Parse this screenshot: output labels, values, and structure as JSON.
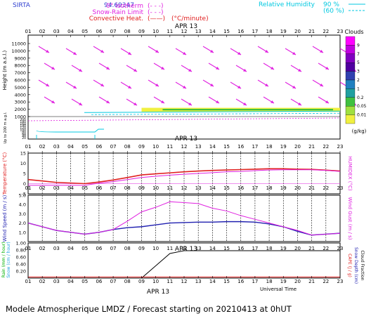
{
  "header": {
    "station": "SIRTA",
    "lonlat": "94.69347",
    "legend_left": [
      {
        "label": "0° isotherm",
        "style": "(- - -)",
        "color": "#e020e0"
      },
      {
        "label": "Snow-Rain Limit",
        "style": "(- - -)",
        "color": "#e020e0"
      },
      {
        "label": "Convective Heat.",
        "style": "(——)",
        "color": "#e020e0"
      }
    ],
    "conv_unit": "(°C/minute)",
    "rh_label": "Relative Humidity",
    "rh_items": [
      {
        "value": "90 %",
        "color": "#00d0e0"
      },
      {
        "value": "(60 %)",
        "color": "#00d0e0"
      }
    ]
  },
  "hours": [
    "01",
    "02",
    "03",
    "04",
    "05",
    "06",
    "07",
    "08",
    "09",
    "10",
    "11",
    "12",
    "13",
    "14",
    "15",
    "16",
    "17",
    "18",
    "19",
    "20",
    "21",
    "22",
    "23"
  ],
  "date_label": "APR 13",
  "colors": {
    "wind_arrow": "#e020e0",
    "temperature": "#e02020",
    "humidex": "#e020e0",
    "wind_speed": "#2020b0",
    "wind_gust": "#e020e0",
    "rain": "#00b000",
    "snow": "#20a0e0",
    "cape": "#e02020",
    "snow_depth": "#2020b0",
    "cloud_fraction": "#000000"
  },
  "clouds_bar": {
    "title": "Clouds",
    "ticks": [
      "9",
      "7",
      "5",
      "3",
      "2",
      "1",
      "0.2",
      "0.05",
      "0.01"
    ],
    "unit": "(g/kg)",
    "colors": [
      "#ff00ff",
      "#c000e0",
      "#8000c0",
      "#5000a0",
      "#3040b0",
      "#2080c0",
      "#20a0a0",
      "#40c040",
      "#a0e040",
      "#f0f040"
    ]
  },
  "panel_labels": {
    "height_axis": "Height  (m a.s.l.)",
    "low_axis": "Up to 200 m a.g.l.",
    "temp_axis": "Temperature (°C)",
    "humidex_axis": "HUMIDEX (°C)",
    "wind_axis": "Wind Speed (m / s)",
    "gust_axis": "Wind Gust (m / s)",
    "rain_axis": "Rain (mm / hour)",
    "snow_axis": "Snow (cm / hour)",
    "cape_axis": "CAPE (J / g)",
    "snowdepth_axis": "Snow Depth (cm)",
    "cloudfrac_axis": "Cloud Fraction",
    "universal_time": "Universal Time"
  },
  "footer": {
    "text": "Modele Atmospherique LMDZ / Forecast starting on 20210413 at 0hUT"
  },
  "chart_data": [
    {
      "type": "heatmap",
      "title": "",
      "ylabel": "Height (m a.s.l.)",
      "y_ticks": [
        "11000",
        "10000",
        "9000",
        "8000",
        "7000",
        "6000",
        "5000",
        "4000",
        "3000",
        "2000",
        "1000"
      ],
      "low_ticks": [
        "200",
        "180",
        "160",
        "140",
        "120",
        "100",
        "80",
        "60",
        "40",
        "20"
      ],
      "ylim": [
        1000,
        11000
      ],
      "clouds_layer": {
        "x_start": 9,
        "x_end": 23,
        "height_m": [
          1650,
          2200
        ]
      },
      "zero_isotherm_m": 1000
    },
    {
      "type": "line",
      "x": [
        1,
        2,
        3,
        4,
        5,
        6,
        7,
        8,
        9,
        10,
        11,
        12,
        13,
        14,
        15,
        16,
        17,
        18,
        19,
        20,
        21,
        22,
        23
      ],
      "ylabel": "Temperature (°C)",
      "y2label": "HUMIDEX (°C)",
      "ylim": [
        -5,
        15
      ],
      "y_ticks": [
        "15",
        "10",
        "5",
        "0",
        "-5"
      ],
      "series": [
        {
          "values": [
            2.0,
            1.3,
            0.6,
            0.3,
            0.0,
            0.8,
            1.8,
            3.0,
            4.3,
            4.8,
            5.3,
            5.8,
            6.2,
            6.5,
            6.7,
            6.9,
            7.1,
            7.3,
            7.3,
            7.1,
            7.0,
            6.6,
            6.2
          ]
        },
        {
          "values": [
            -0.8,
            -0.8,
            -0.8,
            -0.8,
            -0.8,
            0.2,
            1.0,
            2.0,
            3.0,
            3.6,
            4.2,
            4.6,
            5.0,
            5.4,
            5.8,
            6.0,
            6.4,
            6.7,
            6.8,
            6.8,
            6.8,
            6.5,
            6.0
          ]
        }
      ]
    },
    {
      "type": "line",
      "x": [
        1,
        2,
        3,
        4,
        5,
        6,
        7,
        8,
        9,
        10,
        11,
        12,
        13,
        14,
        15,
        16,
        17,
        18,
        19,
        20,
        21,
        22,
        23
      ],
      "ylabel": "Wind Speed (m / s)",
      "y2label": "Wind Gust (m / s)",
      "ylim": [
        0,
        5
      ],
      "y_ticks": [
        "5.0",
        "4.0",
        "3.0",
        "2.0",
        "1.0"
      ],
      "series": [
        {
          "values": [
            2.0,
            1.6,
            1.2,
            1.0,
            0.8,
            1.0,
            1.3,
            1.5,
            1.6,
            1.8,
            2.0,
            2.05,
            2.1,
            2.1,
            2.15,
            2.15,
            2.1,
            1.9,
            1.6,
            1.1,
            0.7,
            0.8,
            0.9
          ]
        },
        {
          "values": [
            2.0,
            1.6,
            1.2,
            1.0,
            0.8,
            1.0,
            1.3,
            2.2,
            3.2,
            3.7,
            4.3,
            4.2,
            4.1,
            3.6,
            3.3,
            2.8,
            2.4,
            2.0,
            1.6,
            1.2,
            0.7,
            0.8,
            0.9
          ]
        }
      ]
    },
    {
      "type": "line",
      "x": [
        1,
        2,
        3,
        4,
        5,
        6,
        7,
        8,
        9,
        10,
        11,
        12,
        13,
        14,
        15,
        16,
        17,
        18,
        19,
        20,
        21,
        22,
        23
      ],
      "ylabel": "Rain (mm / hour)",
      "y2label": "CAPE (J / g)",
      "ylim": [
        0,
        1.0
      ],
      "y_ticks": [
        "1.00",
        "0.80",
        "0.60",
        "0.40",
        "0.20"
      ],
      "series": [
        {
          "values": [
            0,
            0,
            0,
            0,
            0,
            0,
            0,
            0,
            0,
            0.35,
            0.7,
            0.78,
            0.78,
            0.78,
            0.78,
            0.78,
            0.78,
            0.78,
            0.78,
            0.78,
            0.78,
            0.78,
            0.78
          ]
        },
        {
          "values": [
            0.03,
            0.03,
            0.03,
            0.03,
            0.03,
            0.03,
            0.03,
            0.03,
            0.03,
            0.03,
            0.03,
            0.03,
            0.03,
            0.03,
            0.03,
            0.03,
            0.03,
            0.03,
            0.03,
            0.03,
            0.03,
            0.03,
            0.03
          ]
        }
      ]
    }
  ]
}
